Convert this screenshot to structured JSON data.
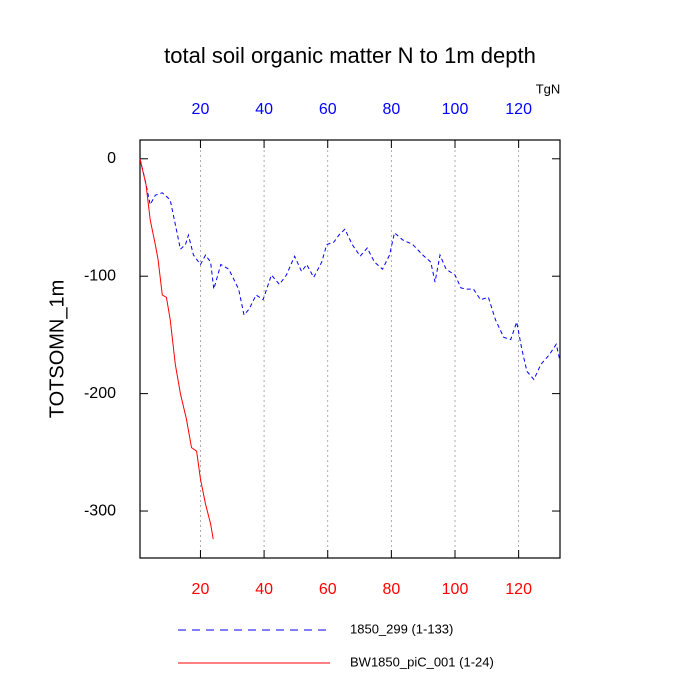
{
  "chart_data": {
    "type": "line",
    "title": "total soil organic matter N to 1m depth",
    "ylabel": "TOTSOMN_1m",
    "units": "TgN",
    "xlim": [
      1,
      133
    ],
    "xticks": [
      20,
      40,
      60,
      80,
      100,
      120
    ],
    "ylim": [
      -340,
      16
    ],
    "yticks": [
      0,
      -100,
      -200,
      -300
    ],
    "top_tick_color": "#0000ff",
    "bottom_tick_color": "#ff0000",
    "grid": true,
    "series": [
      {
        "name": "1850_299 (1-133)",
        "color": "#0000ff",
        "dash": true,
        "x": [
          1,
          2.6,
          4.2,
          5.8,
          8,
          10.5,
          12.4,
          13.7,
          15.3,
          16.2,
          17.8,
          20,
          21.6,
          23.2,
          24.2,
          26.4,
          28.9,
          32,
          33.7,
          35.3,
          37.5,
          39.7,
          42.3,
          44.8,
          47,
          49.6,
          51.8,
          53.4,
          55.6,
          58.1,
          59.7,
          61.9,
          63.5,
          65.4,
          67.7,
          70.2,
          72.4,
          74.7,
          77.2,
          79.4,
          81,
          83.5,
          86.7,
          89.9,
          92.4,
          93.7,
          95.3,
          97.2,
          100,
          101.9,
          103.5,
          105.8,
          108,
          110.5,
          112.7,
          115.3,
          117.5,
          119.4,
          121,
          122.6,
          124.8,
          127,
          129.6,
          131.8,
          133
        ],
        "values": [
          0,
          -18,
          -39,
          -31,
          -29,
          -35,
          -60,
          -77,
          -73,
          -65,
          -82,
          -90,
          -82,
          -88,
          -111,
          -90,
          -94,
          -111,
          -133,
          -128,
          -116,
          -120,
          -99,
          -107,
          -99,
          -83,
          -96,
          -90,
          -101,
          -88,
          -73,
          -71,
          -65,
          -60,
          -73,
          -83,
          -76,
          -88,
          -94,
          -82,
          -63,
          -69,
          -73,
          -82,
          -88,
          -105,
          -82,
          -94,
          -99,
          -110,
          -111,
          -111,
          -120,
          -118,
          -137,
          -152,
          -154,
          -139,
          -162,
          -181,
          -188,
          -175,
          -167,
          -158,
          -172
        ]
      },
      {
        "name": "BW1850_piC_001 (1-24)",
        "color": "#ff0000",
        "dash": false,
        "x": [
          1,
          2.9,
          4.2,
          5.8,
          6.7,
          8,
          9.3,
          10.5,
          12.1,
          13.7,
          15.6,
          17.2,
          18.8,
          20,
          21.6,
          23.2,
          24
        ],
        "values": [
          0,
          -22,
          -52,
          -73,
          -86,
          -116,
          -118,
          -137,
          -175,
          -200,
          -222,
          -246,
          -249,
          -273,
          -294,
          -311,
          -324
        ]
      }
    ]
  }
}
